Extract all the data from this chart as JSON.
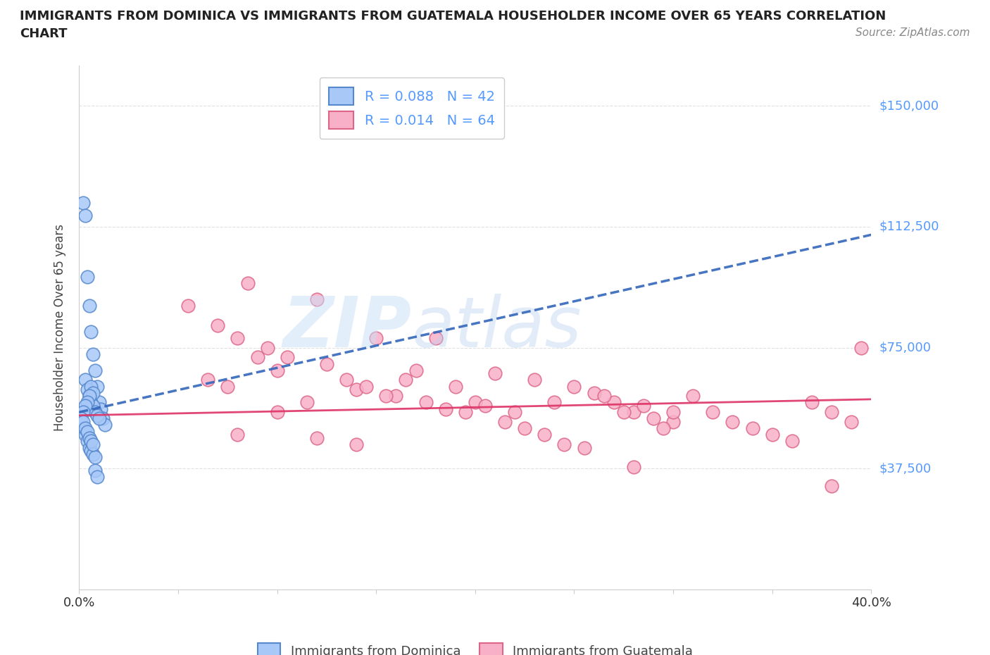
{
  "title_line1": "IMMIGRANTS FROM DOMINICA VS IMMIGRANTS FROM GUATEMALA HOUSEHOLDER INCOME OVER 65 YEARS CORRELATION",
  "title_line2": "CHART",
  "source": "Source: ZipAtlas.com",
  "ylabel": "Householder Income Over 65 years",
  "xlim": [
    0.0,
    0.4
  ],
  "ylim": [
    0,
    162500
  ],
  "yticks": [
    37500,
    75000,
    112500,
    150000
  ],
  "ytick_labels": [
    "$37,500",
    "$75,000",
    "$112,500",
    "$150,000"
  ],
  "xticks": [
    0.0,
    0.05,
    0.1,
    0.15,
    0.2,
    0.25,
    0.3,
    0.35,
    0.4
  ],
  "dominica_R": 0.088,
  "dominica_N": 42,
  "guatemala_R": 0.014,
  "guatemala_N": 64,
  "dominica_color": "#a8c8f8",
  "dominica_edge": "#5588cc",
  "dominica_line_color": "#3366bb",
  "guatemala_color": "#f8b0c8",
  "guatemala_edge": "#dd6688",
  "guatemala_line_color": "#dd3366",
  "watermark_color": "#c8dff8",
  "background_color": "#ffffff",
  "tick_label_color": "#5599ff",
  "title_color": "#222222",
  "source_color": "#888888",
  "ylabel_color": "#444444",
  "grid_color": "#dddddd",
  "spine_color": "#cccccc",
  "dominica_x": [
    0.002,
    0.003,
    0.004,
    0.005,
    0.006,
    0.007,
    0.008,
    0.009,
    0.01,
    0.011,
    0.012,
    0.013,
    0.003,
    0.004,
    0.005,
    0.006,
    0.007,
    0.008,
    0.009,
    0.01,
    0.002,
    0.003,
    0.004,
    0.005,
    0.006,
    0.007,
    0.008,
    0.006,
    0.007,
    0.005,
    0.004,
    0.003,
    0.002,
    0.001,
    0.002,
    0.003,
    0.004,
    0.005,
    0.006,
    0.007,
    0.008,
    0.009
  ],
  "dominica_y": [
    120000,
    116000,
    97000,
    88000,
    80000,
    73000,
    68000,
    63000,
    58000,
    56000,
    53000,
    51000,
    65000,
    62000,
    60000,
    58000,
    57000,
    55000,
    54000,
    53000,
    50000,
    48000,
    46000,
    44000,
    43000,
    42000,
    41000,
    63000,
    61000,
    60000,
    58000,
    57000,
    55000,
    53000,
    52000,
    50000,
    49000,
    47000,
    46000,
    45000,
    37000,
    35000
  ],
  "guatemala_x": [
    0.055,
    0.07,
    0.08,
    0.09,
    0.1,
    0.12,
    0.14,
    0.15,
    0.16,
    0.17,
    0.18,
    0.19,
    0.2,
    0.21,
    0.22,
    0.23,
    0.24,
    0.25,
    0.26,
    0.27,
    0.28,
    0.29,
    0.3,
    0.31,
    0.32,
    0.33,
    0.34,
    0.35,
    0.36,
    0.37,
    0.38,
    0.39,
    0.065,
    0.075,
    0.085,
    0.095,
    0.105,
    0.115,
    0.125,
    0.135,
    0.145,
    0.155,
    0.165,
    0.175,
    0.185,
    0.195,
    0.205,
    0.215,
    0.225,
    0.235,
    0.245,
    0.255,
    0.265,
    0.275,
    0.285,
    0.295,
    0.08,
    0.1,
    0.12,
    0.14,
    0.28,
    0.3,
    0.38,
    0.395
  ],
  "guatemala_y": [
    88000,
    82000,
    78000,
    72000,
    68000,
    90000,
    62000,
    78000,
    60000,
    68000,
    78000,
    63000,
    58000,
    67000,
    55000,
    65000,
    58000,
    63000,
    61000,
    58000,
    55000,
    53000,
    52000,
    60000,
    55000,
    52000,
    50000,
    48000,
    46000,
    58000,
    55000,
    52000,
    65000,
    63000,
    95000,
    75000,
    72000,
    58000,
    70000,
    65000,
    63000,
    60000,
    65000,
    58000,
    56000,
    55000,
    57000,
    52000,
    50000,
    48000,
    45000,
    44000,
    60000,
    55000,
    57000,
    50000,
    48000,
    55000,
    47000,
    45000,
    38000,
    55000,
    32000,
    75000
  ],
  "dom_line_x0": 0.0,
  "dom_line_x1": 0.4,
  "dom_line_y0": 55000,
  "dom_line_y1": 110000,
  "guat_line_x0": 0.0,
  "guat_line_x1": 0.4,
  "guat_line_y0": 54000,
  "guat_line_y1": 59000
}
